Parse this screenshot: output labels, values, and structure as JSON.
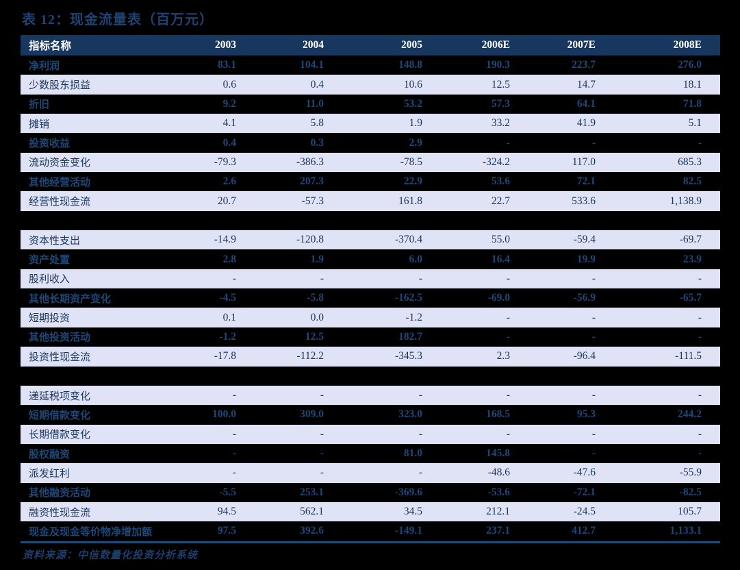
{
  "title": "表 12：现金流量表（百万元）",
  "source_note": "资料来源：中信数量化投资分析系统",
  "colors": {
    "page_bg": "#000000",
    "header_bg": "#17375e",
    "header_text": "#ffffff",
    "light_row_bg": "#e0e2f6",
    "light_row_text": "#17365d",
    "dark_row_text": "#1e4878",
    "rule": "#1d4b7c",
    "title_text": "#1d4474"
  },
  "table": {
    "columns": [
      "指标名称",
      "2003",
      "2004",
      "2005",
      "2006E",
      "2007E",
      "2008E"
    ],
    "rows": [
      {
        "shade": "dark",
        "label": "净利润",
        "values": [
          "83.1",
          "104.1",
          "148.8",
          "190.3",
          "223.7",
          "276.0"
        ]
      },
      {
        "shade": "light",
        "label": "少数股东损益",
        "values": [
          "0.6",
          "0.4",
          "10.6",
          "12.5",
          "14.7",
          "18.1"
        ]
      },
      {
        "shade": "dark",
        "label": "折旧",
        "values": [
          "9.2",
          "11.0",
          "53.2",
          "57.3",
          "64.1",
          "71.8"
        ]
      },
      {
        "shade": "light",
        "label": "摊销",
        "values": [
          "4.1",
          "5.8",
          "1.9",
          "33.2",
          "41.9",
          "5.1"
        ]
      },
      {
        "shade": "dark",
        "label": "投资收益",
        "values": [
          "0.4",
          "0.3",
          "2.9",
          "-",
          "-",
          "-"
        ]
      },
      {
        "shade": "light",
        "label": "流动资金变化",
        "values": [
          "-79.3",
          "-386.3",
          "-78.5",
          "-324.2",
          "117.0",
          "685.3"
        ]
      },
      {
        "shade": "dark",
        "label": "其他经营活动",
        "values": [
          "2.6",
          "207.3",
          "22.9",
          "53.6",
          "72.1",
          "82.5"
        ]
      },
      {
        "shade": "light",
        "label": "经营性现金流",
        "values": [
          "20.7",
          "-57.3",
          "161.8",
          "22.7",
          "533.6",
          "1,138.9"
        ]
      },
      {
        "shade": "gap",
        "label": "",
        "values": [
          "",
          "",
          "",
          "",
          "",
          ""
        ]
      },
      {
        "shade": "light",
        "label": "资本性支出",
        "values": [
          "-14.9",
          "-120.8",
          "-370.4",
          "55.0",
          "-59.4",
          "-69.7"
        ]
      },
      {
        "shade": "dark",
        "label": "资产处置",
        "values": [
          "2.8",
          "1.9",
          "6.0",
          "16.4",
          "19.9",
          "23.9"
        ]
      },
      {
        "shade": "light",
        "label": "股利收入",
        "values": [
          "-",
          "-",
          "-",
          "-",
          "-",
          "-"
        ]
      },
      {
        "shade": "dark",
        "label": "其他长期资产变化",
        "values": [
          "-4.5",
          "-5.8",
          "-162.5",
          "-69.0",
          "-56.9",
          "-65.7"
        ]
      },
      {
        "shade": "light",
        "label": "短期投资",
        "values": [
          "0.1",
          "0.0",
          "-1.2",
          "-",
          "-",
          "-"
        ]
      },
      {
        "shade": "dark",
        "label": "其他投资活动",
        "values": [
          "-1.2",
          "12.5",
          "182.7",
          "-",
          "-",
          "-"
        ]
      },
      {
        "shade": "light",
        "label": "投资性现金流",
        "values": [
          "-17.8",
          "-112.2",
          "-345.3",
          "2.3",
          "-96.4",
          "-111.5"
        ]
      },
      {
        "shade": "gap",
        "label": "",
        "values": [
          "",
          "",
          "",
          "",
          "",
          ""
        ]
      },
      {
        "shade": "light",
        "label": "递延税项变化",
        "values": [
          "-",
          "-",
          "-",
          "-",
          "-",
          "-"
        ]
      },
      {
        "shade": "dark",
        "label": "短期借款变化",
        "values": [
          "100.0",
          "309.0",
          "323.0",
          "168.5",
          "95.3",
          "244.2"
        ]
      },
      {
        "shade": "light",
        "label": "长期借款变化",
        "values": [
          "-",
          "-",
          "-",
          "-",
          "-",
          "-"
        ]
      },
      {
        "shade": "dark",
        "label": "股权融资",
        "values": [
          "-",
          "-",
          "81.0",
          "145.8",
          "-",
          "-"
        ]
      },
      {
        "shade": "light",
        "label": "派发红利",
        "values": [
          "-",
          "-",
          "-",
          "-48.6",
          "-47.6",
          "-55.9"
        ]
      },
      {
        "shade": "dark",
        "label": "其他融资活动",
        "values": [
          "-5.5",
          "253.1",
          "-369.6",
          "-53.6",
          "-72.1",
          "-82.5"
        ]
      },
      {
        "shade": "light",
        "label": "融资性现金流",
        "values": [
          "94.5",
          "562.1",
          "34.5",
          "212.1",
          "-24.5",
          "105.7"
        ]
      },
      {
        "shade": "dark",
        "label": "现金及现金等价物净增加额",
        "values": [
          "97.5",
          "392.6",
          "-149.1",
          "237.1",
          "412.7",
          "1,133.1"
        ]
      }
    ]
  }
}
